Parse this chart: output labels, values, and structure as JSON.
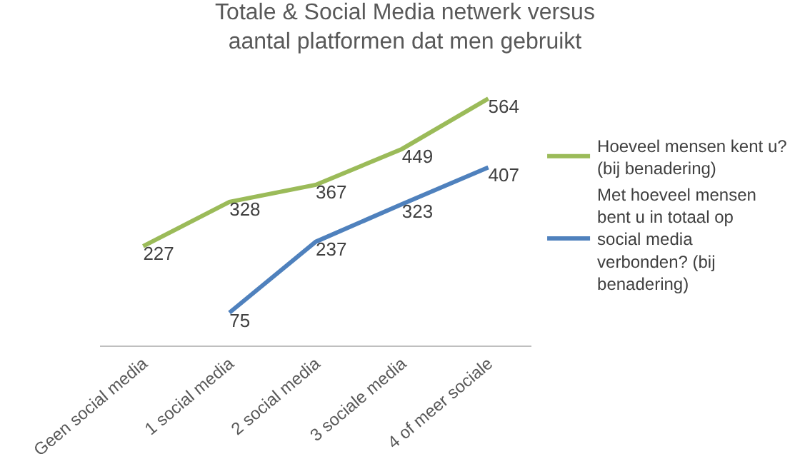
{
  "chart_data": {
    "type": "line",
    "title": "Totale & Social Media netwerk versus aantal platformen dat men gebruikt",
    "categories": [
      "Geen social media",
      "1 social media",
      "2 social media",
      "3 sociale media",
      "4 of meer sociale"
    ],
    "series": [
      {
        "name": "Hoeveel mensen kent u? (bij benadering)",
        "color": "#9bbb59",
        "values": [
          227,
          328,
          367,
          449,
          564
        ]
      },
      {
        "name": "Met hoeveel mensen bent u in totaal op social media verbonden? (bij benadering)",
        "color": "#4f81bd",
        "values": [
          null,
          75,
          237,
          323,
          407
        ]
      }
    ],
    "tick_labels": "x",
    "data_labels": true,
    "legend": "right",
    "marker": "none",
    "line_style": "solid"
  }
}
